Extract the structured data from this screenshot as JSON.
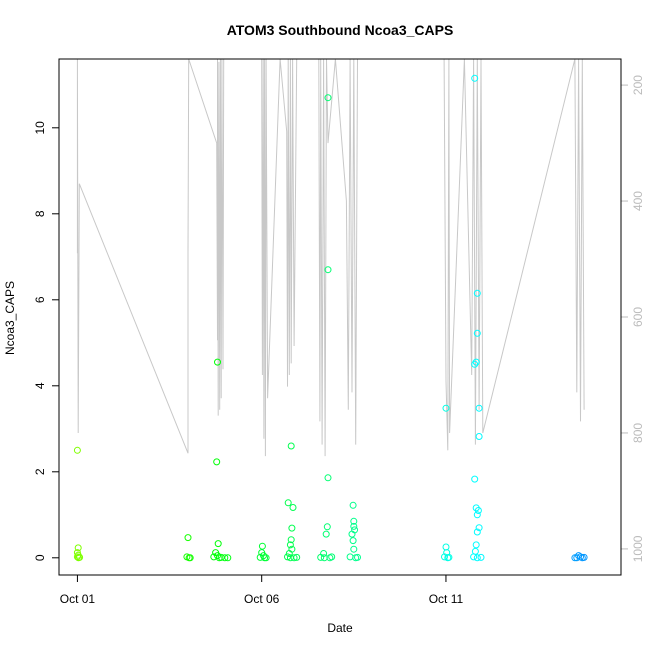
{
  "chart_data": {
    "type": "scatter",
    "title": "ATOM3 Southbound Ncoa3_CAPS",
    "xlabel": "Date",
    "ylabel": "Ncoa3_CAPS",
    "x_units": "days since Oct 01",
    "xlim": [
      -0.5,
      14.75
    ],
    "ylim": [
      -0.4,
      11.6
    ],
    "x_ticks": [
      {
        "value": 0,
        "label": "Oct 01"
      },
      {
        "value": 5,
        "label": "Oct 06"
      },
      {
        "value": 10,
        "label": "Oct 11"
      }
    ],
    "y_ticks": [
      0,
      2,
      4,
      6,
      8,
      10
    ],
    "right_axis": {
      "ylim": [
        1045,
        155
      ],
      "reversed": true,
      "ticks": [
        200,
        400,
        600,
        800,
        1000
      ],
      "color": "#bbbbbb"
    },
    "grid": false,
    "legend": "none",
    "colors": {
      "line": "#c8c8c8",
      "points_start": "#80ff00",
      "points_mid": "#00ff80",
      "points_end": "#0090ff"
    },
    "points": [
      {
        "x": 0.0,
        "y": 2.5
      },
      {
        "x": 0.02,
        "y": 0.23
      },
      {
        "x": 0.0,
        "y": 0.12
      },
      {
        "x": 0.02,
        "y": 0.06
      },
      {
        "x": 0.0,
        "y": 0.02
      },
      {
        "x": 0.03,
        "y": 0.0
      },
      {
        "x": 0.06,
        "y": 0.01
      },
      {
        "x": 3.0,
        "y": 0.47
      },
      {
        "x": 2.97,
        "y": 0.02
      },
      {
        "x": 3.03,
        "y": 0.0
      },
      {
        "x": 3.06,
        "y": 0.0
      },
      {
        "x": 3.8,
        "y": 4.55
      },
      {
        "x": 3.78,
        "y": 2.23
      },
      {
        "x": 3.82,
        "y": 0.33
      },
      {
        "x": 3.75,
        "y": 0.12
      },
      {
        "x": 3.8,
        "y": 0.05
      },
      {
        "x": 3.7,
        "y": 0.02
      },
      {
        "x": 3.85,
        "y": 0.0
      },
      {
        "x": 3.9,
        "y": 0.01
      },
      {
        "x": 4.0,
        "y": 0.0
      },
      {
        "x": 4.08,
        "y": 0.0
      },
      {
        "x": 5.02,
        "y": 0.27
      },
      {
        "x": 5.0,
        "y": 0.12
      },
      {
        "x": 5.05,
        "y": 0.05
      },
      {
        "x": 4.96,
        "y": 0.01
      },
      {
        "x": 5.08,
        "y": 0.0
      },
      {
        "x": 5.12,
        "y": 0.0
      },
      {
        "x": 5.72,
        "y": 1.28
      },
      {
        "x": 5.8,
        "y": 2.6
      },
      {
        "x": 5.85,
        "y": 1.17
      },
      {
        "x": 5.82,
        "y": 0.69
      },
      {
        "x": 5.8,
        "y": 0.42
      },
      {
        "x": 5.78,
        "y": 0.3
      },
      {
        "x": 5.82,
        "y": 0.2
      },
      {
        "x": 5.75,
        "y": 0.1
      },
      {
        "x": 5.7,
        "y": 0.02
      },
      {
        "x": 5.78,
        "y": 0.0
      },
      {
        "x": 5.88,
        "y": 0.0
      },
      {
        "x": 5.95,
        "y": 0.01
      },
      {
        "x": 6.68,
        "y": 0.1
      },
      {
        "x": 6.75,
        "y": 0.55
      },
      {
        "x": 6.78,
        "y": 0.72
      },
      {
        "x": 6.8,
        "y": 1.86
      },
      {
        "x": 6.8,
        "y": 6.7
      },
      {
        "x": 6.8,
        "y": 10.7
      },
      {
        "x": 6.6,
        "y": 0.01
      },
      {
        "x": 6.7,
        "y": 0.0
      },
      {
        "x": 6.85,
        "y": 0.0
      },
      {
        "x": 6.9,
        "y": 0.02
      },
      {
        "x": 7.45,
        "y": 0.55
      },
      {
        "x": 7.48,
        "y": 0.4
      },
      {
        "x": 7.5,
        "y": 0.73
      },
      {
        "x": 7.5,
        "y": 0.85
      },
      {
        "x": 7.52,
        "y": 0.65
      },
      {
        "x": 7.48,
        "y": 1.22
      },
      {
        "x": 7.5,
        "y": 0.2
      },
      {
        "x": 7.4,
        "y": 0.02
      },
      {
        "x": 7.55,
        "y": 0.0
      },
      {
        "x": 7.6,
        "y": 0.01
      },
      {
        "x": 10.0,
        "y": 3.48
      },
      {
        "x": 10.0,
        "y": 0.25
      },
      {
        "x": 10.02,
        "y": 0.12
      },
      {
        "x": 9.96,
        "y": 0.02
      },
      {
        "x": 10.05,
        "y": 0.0
      },
      {
        "x": 10.08,
        "y": 0.01
      },
      {
        "x": 10.78,
        "y": 11.15
      },
      {
        "x": 10.85,
        "y": 6.15
      },
      {
        "x": 10.85,
        "y": 5.22
      },
      {
        "x": 10.78,
        "y": 4.5
      },
      {
        "x": 10.82,
        "y": 4.55
      },
      {
        "x": 10.9,
        "y": 3.48
      },
      {
        "x": 10.9,
        "y": 2.82
      },
      {
        "x": 10.78,
        "y": 1.83
      },
      {
        "x": 10.82,
        "y": 1.16
      },
      {
        "x": 10.88,
        "y": 1.1
      },
      {
        "x": 10.85,
        "y": 1.0
      },
      {
        "x": 10.9,
        "y": 0.7
      },
      {
        "x": 10.85,
        "y": 0.6
      },
      {
        "x": 10.82,
        "y": 0.3
      },
      {
        "x": 10.8,
        "y": 0.15
      },
      {
        "x": 10.75,
        "y": 0.02
      },
      {
        "x": 10.85,
        "y": 0.0
      },
      {
        "x": 10.95,
        "y": 0.01
      },
      {
        "x": 13.6,
        "y": 0.05
      },
      {
        "x": 13.65,
        "y": 0.02
      },
      {
        "x": 13.55,
        "y": 0.0
      },
      {
        "x": 13.7,
        "y": 0.0
      },
      {
        "x": 13.75,
        "y": 0.01
      },
      {
        "x": 13.5,
        "y": 0.0
      }
    ],
    "line_series": [
      {
        "x": 0.0,
        "r": 490
      },
      {
        "x": 0.0,
        "r": 155
      },
      {
        "x": 0.02,
        "r": 800
      },
      {
        "x": 0.05,
        "r": 370
      },
      {
        "x": 3.0,
        "r": 835
      },
      {
        "x": 3.0,
        "r": 490
      },
      {
        "x": 3.02,
        "r": 155
      },
      {
        "x": 3.78,
        "r": 300
      },
      {
        "x": 3.8,
        "r": 640
      },
      {
        "x": 3.8,
        "r": 155
      },
      {
        "x": 3.82,
        "r": 770
      },
      {
        "x": 3.84,
        "r": 160
      },
      {
        "x": 3.86,
        "r": 760
      },
      {
        "x": 3.88,
        "r": 155
      },
      {
        "x": 3.9,
        "r": 740
      },
      {
        "x": 3.92,
        "r": 155
      },
      {
        "x": 3.95,
        "r": 690
      },
      {
        "x": 3.97,
        "r": 155
      },
      {
        "x": 4.0,
        "r": 155
      },
      {
        "x": 5.0,
        "r": 155
      },
      {
        "x": 5.02,
        "r": 700
      },
      {
        "x": 5.04,
        "r": 155
      },
      {
        "x": 5.06,
        "r": 810
      },
      {
        "x": 5.08,
        "r": 155
      },
      {
        "x": 5.1,
        "r": 840
      },
      {
        "x": 5.12,
        "r": 155
      },
      {
        "x": 5.16,
        "r": 740
      },
      {
        "x": 5.5,
        "r": 155
      },
      {
        "x": 5.68,
        "r": 280
      },
      {
        "x": 5.7,
        "r": 720
      },
      {
        "x": 5.72,
        "r": 155
      },
      {
        "x": 5.75,
        "r": 700
      },
      {
        "x": 5.78,
        "r": 155
      },
      {
        "x": 5.8,
        "r": 680
      },
      {
        "x": 5.84,
        "r": 155
      },
      {
        "x": 5.88,
        "r": 650
      },
      {
        "x": 5.95,
        "r": 155
      },
      {
        "x": 6.55,
        "r": 155
      },
      {
        "x": 6.58,
        "r": 780
      },
      {
        "x": 6.6,
        "r": 155
      },
      {
        "x": 6.64,
        "r": 820
      },
      {
        "x": 6.68,
        "r": 155
      },
      {
        "x": 6.72,
        "r": 840
      },
      {
        "x": 6.76,
        "r": 155
      },
      {
        "x": 6.8,
        "r": 300
      },
      {
        "x": 7.0,
        "r": 155
      },
      {
        "x": 7.3,
        "r": 400
      },
      {
        "x": 7.35,
        "r": 760
      },
      {
        "x": 7.4,
        "r": 155
      },
      {
        "x": 7.45,
        "r": 730
      },
      {
        "x": 7.5,
        "r": 155
      },
      {
        "x": 7.55,
        "r": 820
      },
      {
        "x": 7.6,
        "r": 155
      },
      {
        "x": 9.95,
        "r": 155
      },
      {
        "x": 10.0,
        "r": 710
      },
      {
        "x": 10.05,
        "r": 830
      },
      {
        "x": 10.08,
        "r": 155
      },
      {
        "x": 10.1,
        "r": 800
      },
      {
        "x": 10.5,
        "r": 155
      },
      {
        "x": 10.7,
        "r": 700
      },
      {
        "x": 10.75,
        "r": 155
      },
      {
        "x": 10.8,
        "r": 820
      },
      {
        "x": 10.85,
        "r": 155
      },
      {
        "x": 10.9,
        "r": 760
      },
      {
        "x": 10.95,
        "r": 155
      },
      {
        "x": 11.0,
        "r": 800
      },
      {
        "x": 13.5,
        "r": 155
      },
      {
        "x": 13.55,
        "r": 730
      },
      {
        "x": 13.6,
        "r": 155
      },
      {
        "x": 13.65,
        "r": 780
      },
      {
        "x": 13.7,
        "r": 155
      },
      {
        "x": 13.75,
        "r": 760
      }
    ]
  }
}
